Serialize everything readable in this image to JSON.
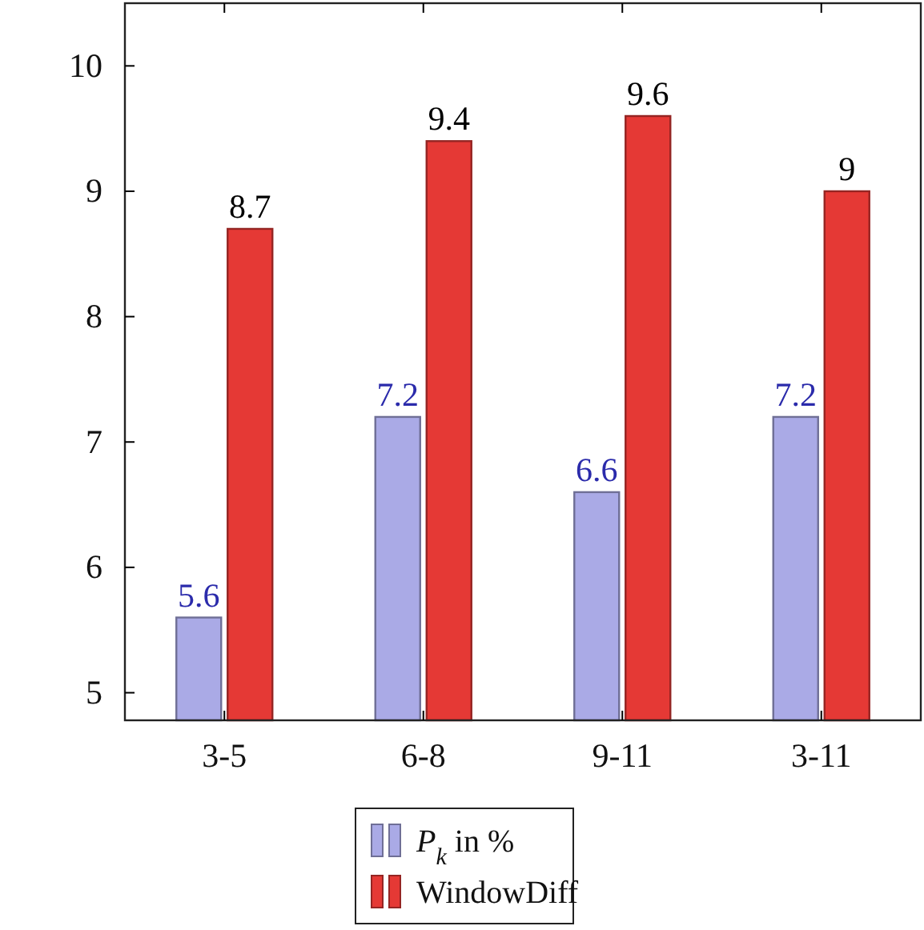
{
  "chart_data": {
    "type": "bar",
    "categories": [
      "3-5",
      "6-8",
      "9-11",
      "3-11"
    ],
    "series": [
      {
        "name": "P$_{k}$ in %",
        "color": "#aaaae6",
        "values": [
          5.6,
          7.2,
          6.6,
          7.2
        ]
      },
      {
        "name": "WindowDiff",
        "color": "#e53935",
        "values": [
          8.7,
          9.4,
          9.6,
          9.0
        ]
      }
    ],
    "ylim": [
      4.78,
      10.5
    ],
    "yticks": [
      5,
      6,
      7,
      8,
      9,
      10
    ],
    "data_labels": true,
    "legend": "bottom",
    "grid": false
  }
}
